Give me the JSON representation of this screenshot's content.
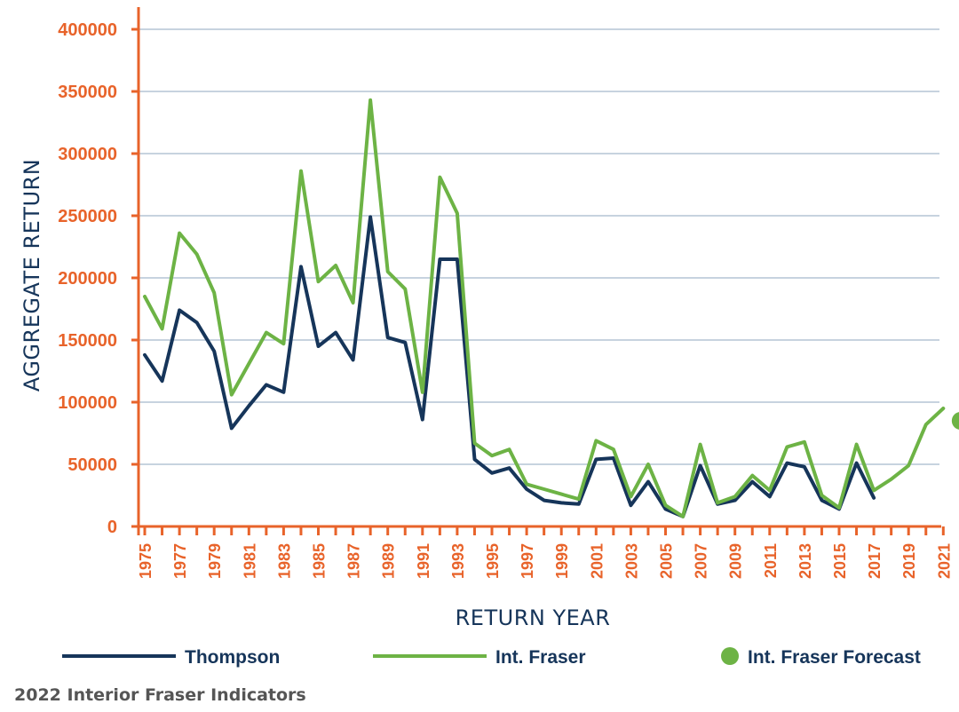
{
  "chart_data": {
    "type": "line",
    "xlabel": "RETURN YEAR",
    "ylabel": "AGGREGATE RETURN",
    "ylim": [
      0,
      400000
    ],
    "yticks": [
      0,
      50000,
      100000,
      150000,
      200000,
      250000,
      300000,
      350000,
      400000
    ],
    "ytick_labels": [
      "0",
      "50000",
      "100000",
      "150000",
      "200000",
      "250000",
      "300000",
      "350000",
      "400000"
    ],
    "xlim": [
      1975,
      2022
    ],
    "xtick_labels": [
      "1975",
      "1977",
      "1979",
      "1981",
      "1983",
      "1985",
      "1987",
      "1989",
      "1991",
      "1993",
      "1995",
      "1997",
      "1999",
      "2001",
      "2003",
      "2005",
      "2007",
      "2009",
      "2011",
      "2013",
      "2015",
      "2017",
      "2019",
      "2021"
    ],
    "grid": true,
    "series": [
      {
        "name": "Thompson",
        "color": "#16355a",
        "x": [
          1975,
          1976,
          1977,
          1978,
          1979,
          1980,
          1981,
          1982,
          1983,
          1984,
          1985,
          1986,
          1987,
          1988,
          1989,
          1990,
          1991,
          1992,
          1993,
          1994,
          1995,
          1996,
          1997,
          1998,
          1999,
          2000,
          2001,
          2002,
          2003,
          2004,
          2005,
          2006,
          2007,
          2008,
          2009,
          2010,
          2011,
          2012,
          2013,
          2014,
          2015,
          2016,
          2017
        ],
        "y": [
          138000,
          117000,
          174000,
          164000,
          141000,
          79000,
          97000,
          114000,
          108000,
          209000,
          145000,
          156000,
          134000,
          249000,
          152000,
          148000,
          86000,
          215000,
          215000,
          54000,
          43000,
          47000,
          30000,
          21000,
          19000,
          18000,
          54000,
          55000,
          17000,
          36000,
          14000,
          8000,
          49000,
          18000,
          21000,
          36000,
          24000,
          51000,
          48000,
          21000,
          14000,
          51000,
          23000
        ]
      },
      {
        "name": "Int. Fraser",
        "color": "#6db345",
        "x": [
          1975,
          1976,
          1977,
          1978,
          1979,
          1980,
          1981,
          1982,
          1983,
          1984,
          1985,
          1986,
          1987,
          1988,
          1989,
          1990,
          1991,
          1992,
          1993,
          1994,
          1995,
          1996,
          1997,
          1998,
          1999,
          2000,
          2001,
          2002,
          2003,
          2004,
          2005,
          2006,
          2007,
          2008,
          2009,
          2010,
          2011,
          2012,
          2013,
          2014,
          2015,
          2016,
          2017,
          2018,
          2019,
          2020,
          2021
        ],
        "y": [
          185000,
          159000,
          236000,
          219000,
          188000,
          106000,
          131000,
          156000,
          147000,
          286000,
          197000,
          210000,
          180000,
          343000,
          205000,
          191000,
          108000,
          281000,
          252000,
          67000,
          57000,
          62000,
          34000,
          30000,
          26000,
          22000,
          69000,
          62000,
          24000,
          50000,
          17000,
          8000,
          66000,
          19000,
          24000,
          41000,
          29000,
          64000,
          68000,
          25000,
          15000,
          66000,
          29000,
          38000,
          49000,
          82000,
          95000
        ]
      },
      {
        "name": "Int. Fraser Forecast",
        "color": "#6db345",
        "marker": "circle",
        "x": [
          2022
        ],
        "y": [
          85000
        ]
      }
    ]
  },
  "legend": {
    "items": [
      {
        "label": "Thompson",
        "kind": "line",
        "color": "#16355a"
      },
      {
        "label": "Int. Fraser",
        "kind": "line",
        "color": "#6db345"
      },
      {
        "label": "Int. Fraser Forecast",
        "kind": "dot",
        "color": "#6db345"
      }
    ]
  },
  "footer": {
    "source": "2022 Interior Fraser Indicators"
  }
}
